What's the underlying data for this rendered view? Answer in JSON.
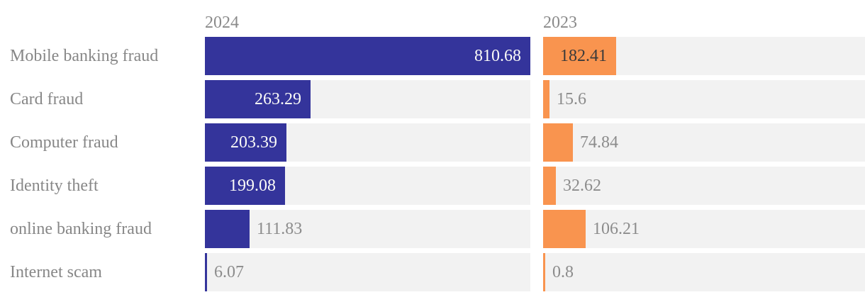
{
  "chart_data": {
    "type": "bar",
    "orientation": "horizontal",
    "categories": [
      "Mobile banking fraud",
      "Card fraud",
      "Computer fraud",
      "Identity theft",
      "online banking fraud",
      "Internet scam"
    ],
    "series": [
      {
        "name": "2024",
        "values": [
          810.68,
          263.29,
          203.39,
          199.08,
          111.83,
          6.07
        ],
        "value_labels": [
          "810.68",
          "263.29",
          "203.39",
          "199.08",
          "111.83",
          "6.07"
        ],
        "color": "#34349B",
        "inside_label_color": "#FBFBF7"
      },
      {
        "name": "2023",
        "values": [
          182.41,
          15.6,
          74.84,
          32.62,
          106.21,
          0.8
        ],
        "value_labels": [
          "182.41",
          "15.6",
          "74.84",
          "32.62",
          "106.21",
          "0.8"
        ],
        "color": "#F9944F",
        "inside_label_color": "#3A3A3A"
      }
    ],
    "xmin": 0,
    "xmax": 810.68,
    "grid": false,
    "legend_position": "column-headers",
    "track_color": "#F2F2F2",
    "outside_label_color": "#8C8C8C",
    "category_label_color": "#878787",
    "header_color": "#8A8A8A",
    "background_color": "#FFFFFF"
  }
}
